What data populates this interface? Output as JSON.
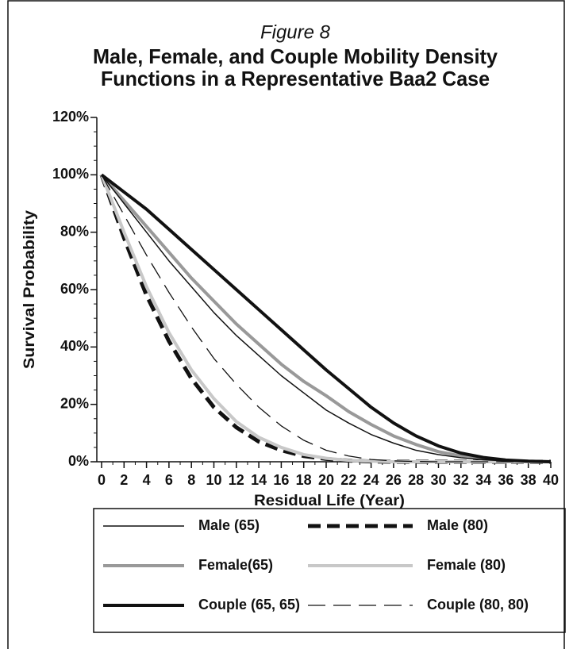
{
  "chart_data": {
    "type": "line",
    "figure_label": "Figure 8",
    "title": [
      "Male, Female, and Couple Mobility Density",
      "Functions in a Representative Baa2 Case"
    ],
    "x_label": "Residual Life (Year)",
    "y_label": "Survival Probability",
    "x": [
      0,
      2,
      4,
      6,
      8,
      10,
      12,
      14,
      16,
      18,
      20,
      22,
      24,
      26,
      28,
      30,
      32,
      34,
      36,
      38,
      40
    ],
    "xlim": [
      0,
      40
    ],
    "xticks": [
      0,
      2,
      4,
      6,
      8,
      10,
      12,
      14,
      16,
      18,
      20,
      22,
      24,
      26,
      28,
      30,
      32,
      34,
      36,
      38,
      40
    ],
    "x_minor_divisions": 2,
    "ylim": [
      0,
      120
    ],
    "yticks": [
      {
        "value": 0,
        "label": "0%"
      },
      {
        "value": 20,
        "label": "20%"
      },
      {
        "value": 40,
        "label": "40%"
      },
      {
        "value": 60,
        "label": "60%"
      },
      {
        "value": 80,
        "label": "80%"
      },
      {
        "value": 100,
        "label": "100%"
      },
      {
        "value": 120,
        "label": "120%"
      }
    ],
    "y_minor_divisions": 4,
    "grid": false,
    "legend": "bottom",
    "series": [
      {
        "name": "Male (65)",
        "color": "#111111",
        "style": "thin",
        "values": [
          100,
          90,
          80,
          70,
          61,
          52,
          44,
          37,
          30,
          24,
          18,
          13.5,
          9.5,
          6.5,
          4,
          2.5,
          1.4,
          0.7,
          0.3,
          0.1,
          0
        ]
      },
      {
        "name": "Male (80)",
        "color": "#111111",
        "style": "thick-dashed",
        "values": [
          100,
          78,
          58,
          42,
          29,
          19,
          12,
          7,
          4,
          2,
          1,
          0.4,
          0.1,
          0,
          0,
          0,
          0,
          0,
          0,
          0,
          0
        ]
      },
      {
        "name": "Female(65)",
        "color": "#999999",
        "style": "thick",
        "values": [
          100,
          91,
          82,
          73,
          64,
          56,
          48,
          41,
          34,
          28,
          23,
          17.5,
          13,
          9,
          6,
          3.5,
          2,
          1,
          0.4,
          0.1,
          0
        ]
      },
      {
        "name": "Female (80)",
        "color": "#c8c8c8",
        "style": "thick",
        "values": [
          100,
          80,
          61,
          45,
          32,
          22,
          14,
          8.5,
          5,
          2.5,
          1.2,
          0.5,
          0.2,
          0,
          0,
          0,
          0,
          0,
          0,
          0,
          0
        ]
      },
      {
        "name": "Couple (65, 65)",
        "color": "#111111",
        "style": "thick",
        "values": [
          100,
          94,
          88,
          81,
          74,
          67,
          60,
          53,
          46,
          39,
          32,
          25.5,
          19,
          13.5,
          9,
          5.5,
          3,
          1.5,
          0.6,
          0.2,
          0
        ]
      },
      {
        "name": "Couple (80, 80)",
        "color": "#111111",
        "style": "thin-dashed",
        "values": [
          100,
          86,
          72,
          59,
          47,
          36,
          27,
          19,
          12.5,
          7.5,
          4,
          2,
          0.8,
          0.3,
          0.1,
          0,
          0,
          0,
          0,
          0,
          0
        ]
      }
    ]
  }
}
